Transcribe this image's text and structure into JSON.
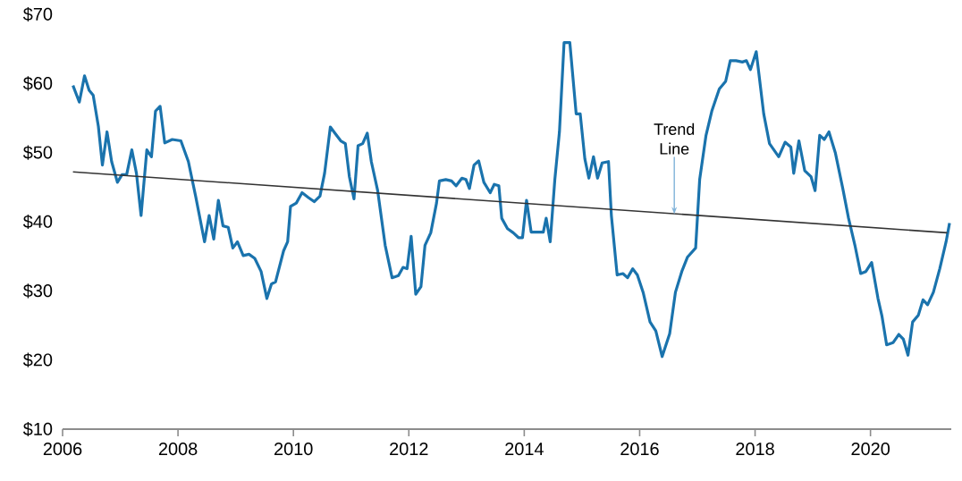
{
  "chart_data": {
    "type": "line",
    "xlim": [
      2006,
      2021.4
    ],
    "ylim": [
      10,
      70
    ],
    "xticks": [
      2006,
      2008,
      2010,
      2012,
      2014,
      2016,
      2018,
      2020
    ],
    "yticks": [
      {
        "value": 10,
        "label": "$10"
      },
      {
        "value": 20,
        "label": "$20"
      },
      {
        "value": 30,
        "label": "$30"
      },
      {
        "value": 40,
        "label": "$40"
      },
      {
        "value": 50,
        "label": "$50"
      },
      {
        "value": 60,
        "label": "$60"
      },
      {
        "value": 70,
        "label": "$70"
      }
    ],
    "annotations": [
      {
        "text": "Trend Line",
        "x": 2016.6,
        "y": 41.1
      }
    ],
    "series": [
      {
        "color": "#1a73ad",
        "x": [
          2006.18,
          2006.29,
          2006.38,
          2006.46,
          2006.53,
          2006.62,
          2006.69,
          2006.77,
          2006.85,
          2006.95,
          2007.03,
          2007.11,
          2007.2,
          2007.28,
          2007.36,
          2007.46,
          2007.54,
          2007.61,
          2007.69,
          2007.77,
          2007.9,
          2008.05,
          2008.18,
          2008.31,
          2008.46,
          2008.54,
          2008.62,
          2008.7,
          2008.78,
          2008.87,
          2008.95,
          2009.03,
          2009.13,
          2009.23,
          2009.33,
          2009.44,
          2009.54,
          2009.62,
          2009.69,
          2009.83,
          2009.9,
          2009.95,
          2010.05,
          2010.15,
          2010.26,
          2010.36,
          2010.46,
          2010.54,
          2010.64,
          2010.72,
          2010.82,
          2010.9,
          2010.97,
          2011.05,
          2011.12,
          2011.2,
          2011.28,
          2011.35,
          2011.46,
          2011.59,
          2011.71,
          2011.82,
          2011.9,
          2011.97,
          2012.04,
          2012.12,
          2012.21,
          2012.28,
          2012.38,
          2012.48,
          2012.53,
          2012.64,
          2012.74,
          2012.82,
          2012.92,
          2012.99,
          2013.05,
          2013.13,
          2013.21,
          2013.3,
          2013.41,
          2013.48,
          2013.56,
          2013.61,
          2013.71,
          2013.81,
          2013.9,
          2013.97,
          2014.04,
          2014.12,
          2014.23,
          2014.33,
          2014.38,
          2014.45,
          2014.53,
          2014.61,
          2014.69,
          2014.79,
          2014.9,
          2014.97,
          2015.05,
          2015.12,
          2015.2,
          2015.27,
          2015.35,
          2015.46,
          2015.51,
          2015.61,
          2015.71,
          2015.79,
          2015.88,
          2015.96,
          2016.06,
          2016.18,
          2016.28,
          2016.39,
          2016.52,
          2016.62,
          2016.73,
          2016.83,
          2016.97,
          2017.04,
          2017.15,
          2017.25,
          2017.38,
          2017.49,
          2017.57,
          2017.67,
          2017.78,
          2017.85,
          2017.92,
          2018.02,
          2018.15,
          2018.25,
          2018.41,
          2018.52,
          2018.62,
          2018.67,
          2018.76,
          2018.86,
          2018.97,
          2019.04,
          2019.12,
          2019.2,
          2019.28,
          2019.39,
          2019.52,
          2019.62,
          2019.73,
          2019.83,
          2019.92,
          2020.02,
          2020.13,
          2020.2,
          2020.28,
          2020.39,
          2020.49,
          2020.57,
          2020.65,
          2020.73,
          2020.83,
          2020.91,
          2020.99,
          2021.09,
          2021.2,
          2021.31,
          2021.37
        ],
        "values": [
          59.7,
          57.3,
          61.1,
          59.0,
          58.3,
          53.8,
          48.2,
          53.0,
          48.7,
          45.7,
          46.8,
          46.8,
          50.4,
          47.0,
          40.9,
          50.4,
          49.4,
          56.0,
          56.7,
          51.4,
          51.9,
          51.7,
          48.7,
          43.5,
          37.1,
          40.9,
          37.5,
          43.1,
          39.4,
          39.2,
          36.2,
          37.1,
          35.1,
          35.3,
          34.7,
          32.8,
          28.9,
          31.0,
          31.3,
          35.8,
          37.1,
          42.2,
          42.7,
          44.2,
          43.5,
          42.9,
          43.7,
          47.0,
          53.7,
          52.8,
          51.7,
          51.3,
          46.5,
          43.3,
          51.0,
          51.3,
          52.8,
          48.7,
          44.5,
          36.6,
          31.9,
          32.2,
          33.4,
          33.2,
          37.9,
          29.5,
          30.6,
          36.6,
          38.4,
          42.7,
          45.9,
          46.1,
          45.9,
          45.2,
          46.3,
          46.1,
          44.8,
          48.2,
          48.8,
          45.7,
          44.2,
          45.4,
          45.2,
          40.5,
          39.0,
          38.4,
          37.7,
          37.7,
          43.1,
          38.5,
          38.5,
          38.5,
          40.5,
          37.1,
          46.1,
          53.0,
          65.9,
          65.9,
          55.6,
          55.6,
          49.1,
          46.3,
          49.4,
          46.3,
          48.5,
          48.7,
          40.9,
          32.3,
          32.5,
          31.9,
          33.2,
          32.3,
          29.8,
          25.5,
          24.2,
          20.5,
          23.8,
          29.8,
          32.8,
          34.9,
          36.2,
          46.1,
          52.5,
          56.0,
          59.2,
          60.3,
          63.3,
          63.3,
          63.1,
          63.3,
          62.0,
          64.6,
          55.6,
          51.3,
          49.4,
          51.5,
          50.8,
          47.0,
          51.7,
          47.4,
          46.5,
          44.5,
          52.5,
          51.9,
          53.0,
          50.0,
          44.8,
          40.5,
          36.6,
          32.5,
          32.8,
          34.1,
          28.9,
          26.3,
          22.2,
          22.5,
          23.7,
          23.0,
          20.7,
          25.5,
          26.5,
          28.7,
          28.0,
          29.8,
          33.2,
          37.1,
          39.8
        ]
      },
      {
        "color": "#333333",
        "x": [
          2006.18,
          2021.33
        ],
        "values": [
          47.2,
          38.4
        ]
      }
    ]
  }
}
